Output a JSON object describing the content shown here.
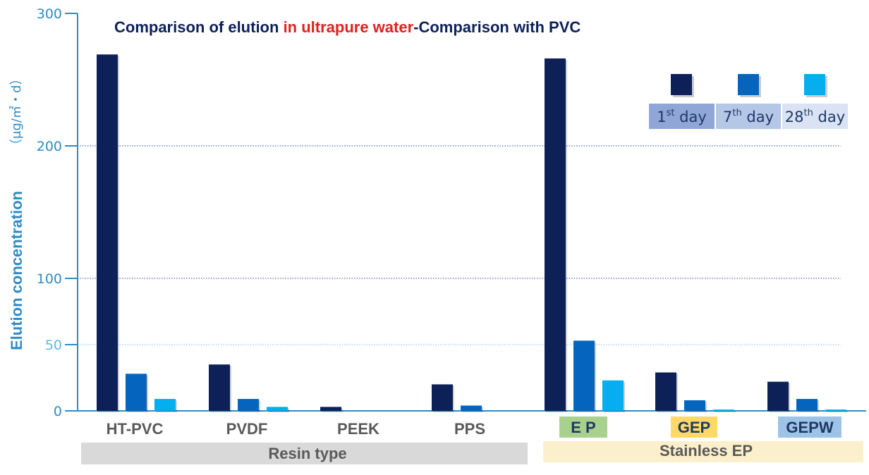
{
  "chart_data": {
    "type": "bar",
    "title_parts": [
      "Comparison of elution ",
      "in ultrapure water",
      "-Comparison with PVC"
    ],
    "ylabel": "Elution concentration",
    "yunit": "（μg/㎡・d）",
    "ylim": [
      0,
      300
    ],
    "yticks": [
      {
        "value": 300,
        "label": "300"
      },
      {
        "value": 200,
        "label": "200"
      },
      {
        "value": 100,
        "label": "100"
      },
      {
        "value": 50,
        "label": "50"
      },
      {
        "value": 0,
        "label": "0"
      }
    ],
    "grid": [
      200,
      100,
      50
    ],
    "categories": [
      "HT-PVC",
      "PVDF",
      "PEEK",
      "PPS",
      "E P",
      "GEP",
      "GEPW"
    ],
    "series": [
      {
        "name": "1st day",
        "color": "#0d2158",
        "values": [
          269,
          35,
          3,
          20,
          266,
          29,
          22
        ]
      },
      {
        "name": "7th day",
        "color": "#0565be",
        "values": [
          28,
          9,
          0,
          4,
          53,
          8,
          9
        ]
      },
      {
        "name": "28th day",
        "color": "#05aeee",
        "values": [
          9,
          3,
          0,
          0,
          23,
          1,
          1
        ]
      }
    ],
    "legend": {
      "placement": "top-right",
      "entries": [
        {
          "base": "1",
          "sup": "st",
          "rest": " day"
        },
        {
          "base": "7",
          "sup": "th",
          "rest": " day"
        },
        {
          "base": "28",
          "sup": "th",
          "rest": " day"
        }
      ]
    },
    "groups": [
      {
        "label": "Resin type"
      },
      {
        "label": "Stainless EP"
      }
    ],
    "colors": {
      "axis": "#2e8cc7",
      "title_main": "#0d2158",
      "title_accent": "#e02020",
      "resin_band": "#d9d9d9",
      "stainless_band": "#fcf0cc",
      "ep_badge": "#a9d18e",
      "gep_badge": "#ffd966",
      "gepw_badge": "#9dc3e6",
      "legend_box_1": "#8fa6d6",
      "legend_box_2": "#b4c7e7",
      "legend_box_3": "#dae3f3"
    }
  }
}
